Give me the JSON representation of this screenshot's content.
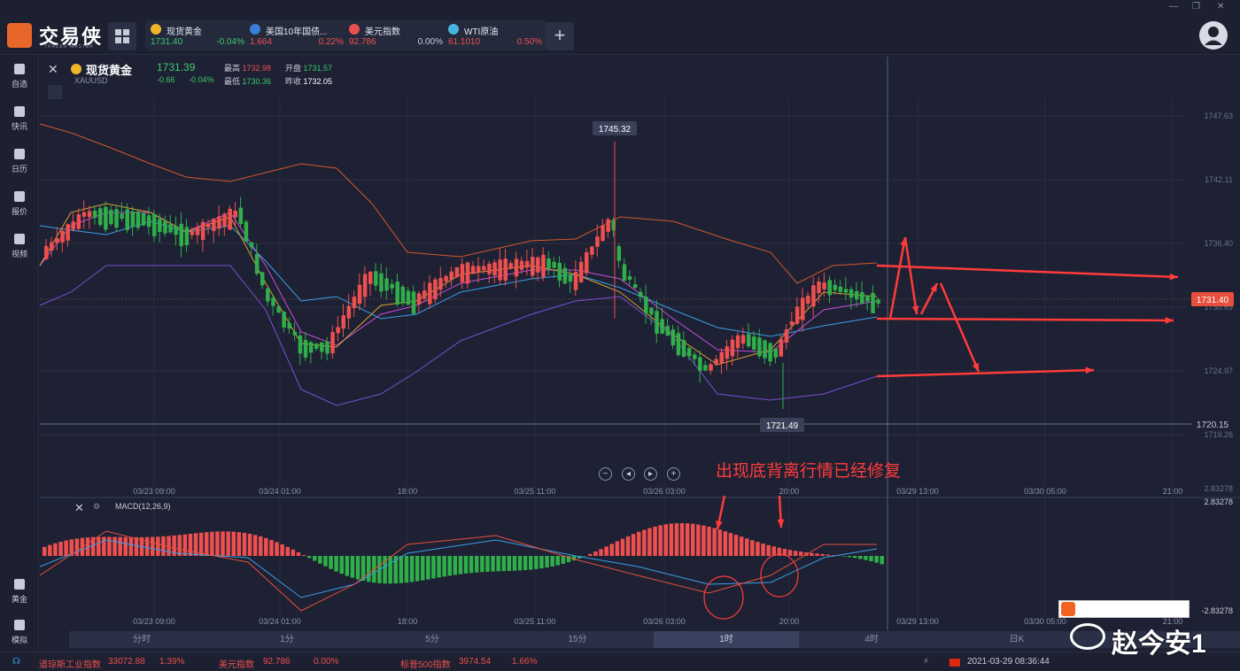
{
  "app": {
    "logo_text": "交易侠",
    "logo_sub": "TRADER MASTER"
  },
  "quote_tabs": [
    {
      "name": "现货黄金",
      "price": "1731.40",
      "change": "-0.04%",
      "icon_color": "#f0b429",
      "price_color": "#3ec96d",
      "change_color": "#3ec96d",
      "active": true
    },
    {
      "name": "美国10年国债...",
      "price": "1.664",
      "change": "0.22%",
      "icon_color": "#3a7fd8",
      "price_color": "#ef4f4f",
      "change_color": "#ef4f4f",
      "active": false
    },
    {
      "name": "美元指数",
      "price": "92.786",
      "change": "0.00%",
      "icon_color": "#e84f4f",
      "price_color": "#ef4f4f",
      "change_color": "#c8ccd8",
      "active": false
    },
    {
      "name": "WTI原油",
      "price": "61.1010",
      "change": "0.50%",
      "icon_color": "#4ab4e0",
      "price_color": "#ef4f4f",
      "change_color": "#ef4f4f",
      "active": false
    }
  ],
  "sidebar": {
    "items": [
      {
        "label": "自选",
        "icon": "star-icon"
      },
      {
        "label": "快讯",
        "icon": "news-icon"
      },
      {
        "label": "日历",
        "icon": "calendar-icon"
      },
      {
        "label": "报价",
        "icon": "quote-icon"
      },
      {
        "label": "视频",
        "icon": "video-icon"
      }
    ],
    "bottom_items": [
      {
        "label": "黄金",
        "icon": "gold-icon"
      },
      {
        "label": "模拟",
        "icon": "simulate-icon"
      }
    ]
  },
  "symbol": {
    "name": "现货黄金",
    "code": "XAUUSD",
    "price": "1731.39",
    "change": "-0.66",
    "change_pct": "-0.04%",
    "high_label": "最高",
    "high": "1732.98",
    "open_label": "开盘",
    "open": "1731.57",
    "low_label": "最低",
    "low": "1730.36",
    "prev_label": "昨收",
    "prev": "1732.05"
  },
  "chart_data": {
    "type": "candlestick",
    "y_axis_labels": [
      "1747.63",
      "1742.11",
      "1736.40",
      "1730.69",
      "1724.97",
      "1719.26"
    ],
    "current_price_label": "1731.40",
    "alert_price_label": "1720.15",
    "peak_label": "1745.32",
    "trough_label": "1721.49",
    "x_axis_labels": [
      "03/23 09:00",
      "03/24 01:00",
      "18:00",
      "03/25 11:00",
      "03/26 03:00",
      "20:00",
      "03/29 13:00",
      "03/30 05:00",
      "21:00"
    ],
    "indicators": "BOLL + MA",
    "annotation": "出现底背离行情已经修复",
    "colors": {
      "up": "#ef4f4f",
      "down": "#2fae4a",
      "boll_upper": "#d4582c",
      "boll_lower": "#7b4fd6",
      "ma_short": "#e0a030",
      "ma_mid": "#c84fd8",
      "ma_long": "#3a9fe8",
      "annotation": "#ff3b3b"
    }
  },
  "macd": {
    "label": "MACD(12,26,9)",
    "y_top": "2.83278",
    "y_bottom": "-2.83278",
    "x_axis_labels": [
      "03/23 09:00",
      "03/24 01:00",
      "18:00",
      "03/25 11:00",
      "03/26 03:00",
      "20:00",
      "03/29 13:00",
      "03/30 05:00",
      "21:00"
    ]
  },
  "periods": [
    {
      "label": "分时",
      "selected": false
    },
    {
      "label": "1分",
      "selected": false
    },
    {
      "label": "5分",
      "selected": false
    },
    {
      "label": "15分",
      "selected": false
    },
    {
      "label": "1时",
      "selected": true
    },
    {
      "label": "4时",
      "selected": false
    },
    {
      "label": "日K",
      "selected": false
    }
  ],
  "status": {
    "items": [
      {
        "name": "道琼斯工业指数",
        "value": "33072.88",
        "change": "1.39%"
      },
      {
        "name": "美元指数",
        "value": "92.786",
        "change": "0.00%"
      },
      {
        "name": "标普500指数",
        "value": "3974.54",
        "change": "1.66%"
      }
    ],
    "datetime": "2021-03-29 08:36:44"
  },
  "watermark": "赵今安1"
}
